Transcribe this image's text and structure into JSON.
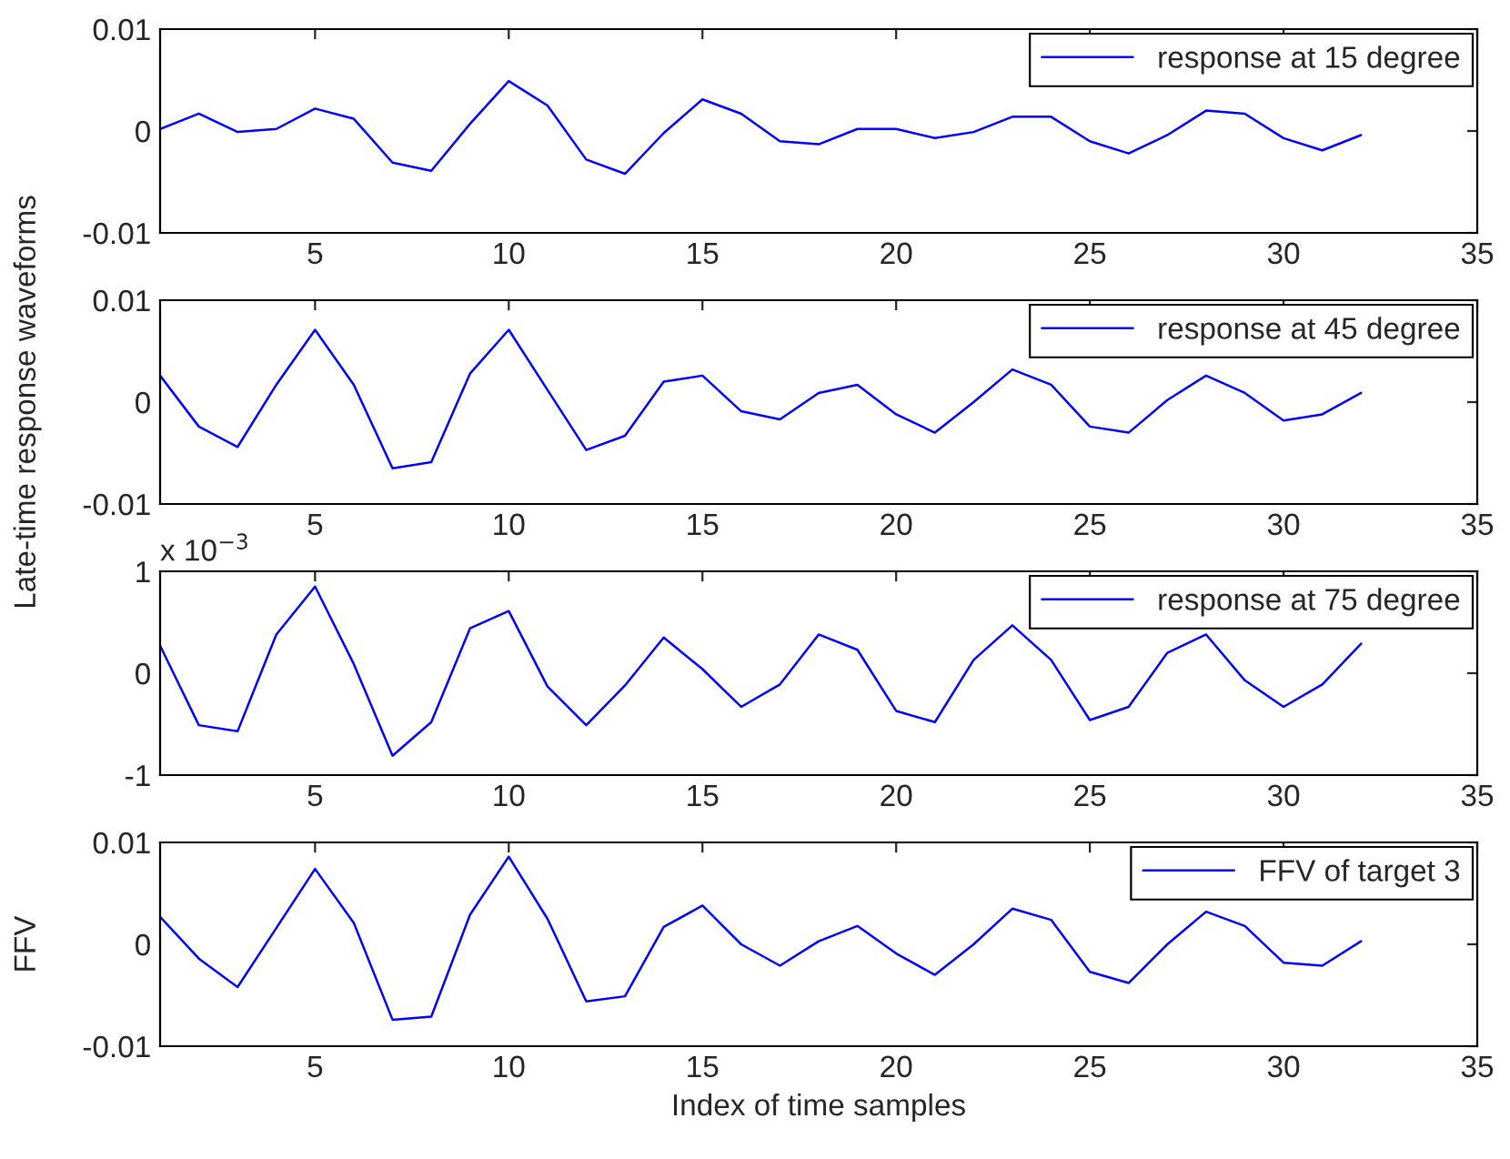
{
  "chart_data": [
    {
      "type": "line",
      "x": [
        1,
        2,
        3,
        4,
        5,
        6,
        7,
        8,
        9,
        10,
        11,
        12,
        13,
        14,
        15,
        16,
        17,
        18,
        19,
        20,
        21,
        22,
        23,
        24,
        25,
        26,
        27,
        28,
        29,
        30,
        31,
        32
      ],
      "series": [
        {
          "name": "response at 15 degree",
          "color": "#0000ff",
          "values": [
            0.0002,
            0.0017,
            -0.0001,
            0.0002,
            0.0022,
            0.0012,
            -0.0031,
            -0.0039,
            0.0007,
            0.0049,
            0.0025,
            -0.0028,
            -0.0042,
            -0.0002,
            0.0031,
            0.0017,
            -0.001,
            -0.0013,
            0.0002,
            0.0002,
            -0.0007,
            -0.0001,
            0.0014,
            0.0014,
            -0.001,
            -0.0022,
            -0.0004,
            0.002,
            0.0017,
            -0.0007,
            -0.0019,
            -0.0004
          ]
        }
      ],
      "xlim": [
        1,
        35
      ],
      "xticks": [
        5,
        10,
        15,
        20,
        25,
        30,
        35
      ],
      "ylim": [
        -0.01,
        0.01
      ],
      "yticks": [
        -0.01,
        0,
        0.01
      ],
      "legend": "top right",
      "grid": false
    },
    {
      "type": "line",
      "x": [
        1,
        2,
        3,
        4,
        5,
        6,
        7,
        8,
        9,
        10,
        11,
        12,
        13,
        14,
        15,
        16,
        17,
        18,
        19,
        20,
        21,
        22,
        23,
        24,
        25,
        26,
        27,
        28,
        29,
        30,
        31,
        32
      ],
      "ylabel": "Late-time response waveforms",
      "series": [
        {
          "name": "response at 45 degree",
          "color": "#0000ff",
          "values": [
            0.0026,
            -0.0024,
            -0.0044,
            0.0017,
            0.0071,
            0.0017,
            -0.0065,
            -0.0059,
            0.0028,
            0.0071,
            0.0012,
            -0.0047,
            -0.0033,
            0.002,
            0.0026,
            -0.0009,
            -0.0017,
            0.0009,
            0.0017,
            -0.0012,
            -0.003,
            0,
            0.0032,
            0.0017,
            -0.0024,
            -0.003,
            0.0002,
            0.0026,
            0.0009,
            -0.0018,
            -0.0012,
            0.0009
          ]
        }
      ],
      "xlim": [
        1,
        35
      ],
      "xticks": [
        5,
        10,
        15,
        20,
        25,
        30,
        35
      ],
      "ylim": [
        -0.01,
        0.01
      ],
      "yticks": [
        -0.01,
        0,
        0.01
      ],
      "legend": "top right",
      "grid": false
    },
    {
      "type": "line",
      "x": [
        1,
        2,
        3,
        4,
        5,
        6,
        7,
        8,
        9,
        10,
        11,
        12,
        13,
        14,
        15,
        16,
        17,
        18,
        19,
        20,
        21,
        22,
        23,
        24,
        25,
        26,
        27,
        28,
        29,
        30,
        31,
        32
      ],
      "annotations": [
        "x 10$^{−3}$"
      ],
      "series": [
        {
          "name": "response at 75 degree",
          "color": "#0000ff",
          "values": [
            0.27,
            -0.51,
            -0.57,
            0.38,
            0.85,
            0.09,
            -0.81,
            -0.48,
            0.44,
            0.61,
            -0.13,
            -0.51,
            -0.12,
            0.35,
            0.04,
            -0.33,
            -0.11,
            0.38,
            0.23,
            -0.37,
            -0.48,
            0.13,
            0.47,
            0.13,
            -0.46,
            -0.33,
            0.2,
            0.38,
            -0.07,
            -0.33,
            -0.11,
            0.29
          ]
        }
      ],
      "xlim": [
        1,
        35
      ],
      "xticks": [
        5,
        10,
        15,
        20,
        25,
        30,
        35
      ],
      "ylim": [
        -1,
        1
      ],
      "yticks": [
        -1,
        0,
        1
      ],
      "legend": "top right",
      "grid": false
    },
    {
      "type": "line",
      "x": [
        1,
        2,
        3,
        4,
        5,
        6,
        7,
        8,
        9,
        10,
        11,
        12,
        13,
        14,
        15,
        16,
        17,
        18,
        19,
        20,
        21,
        22,
        23,
        24,
        25,
        26,
        27,
        28,
        29,
        30,
        31,
        32
      ],
      "ylabel": "FFV",
      "xlabel": "Index of time samples",
      "series": [
        {
          "name": "FFV of target 3",
          "color": "#0000ff",
          "values": [
            0.0027,
            -0.0014,
            -0.0042,
            0.0016,
            0.0074,
            0.0021,
            -0.0074,
            -0.0071,
            0.0029,
            0.0086,
            0.0025,
            -0.0056,
            -0.0051,
            0.0017,
            0.0038,
            0,
            -0.0021,
            0.0003,
            0.0018,
            -0.0009,
            -0.003,
            0,
            0.0035,
            0.0024,
            -0.0027,
            -0.0038,
            0,
            0.0032,
            0.0018,
            -0.0018,
            -0.0021,
            0.0003
          ]
        }
      ],
      "xlim": [
        1,
        35
      ],
      "xticks": [
        5,
        10,
        15,
        20,
        25,
        30,
        35
      ],
      "ylim": [
        -0.01,
        0.01
      ],
      "yticks": [
        -0.01,
        0,
        0.01
      ],
      "legend": "top right",
      "grid": false
    }
  ]
}
